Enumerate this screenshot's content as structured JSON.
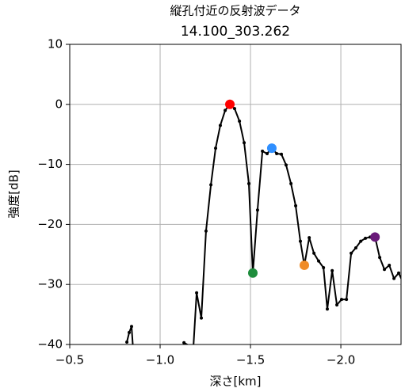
{
  "chart_data": {
    "type": "line",
    "title": "縦孔付近の反射波データ",
    "subtitle": "14.100_303.262",
    "x_label": "深さ[km]",
    "y_label": "強度[dB]",
    "xlim": [
      -0.5,
      -2.333
    ],
    "ylim": [
      -40,
      10
    ],
    "xticks": [
      {
        "value": -0.5,
        "label": "−0.5"
      },
      {
        "value": -1.0,
        "label": "−1.0"
      },
      {
        "value": -1.5,
        "label": "−1.5"
      },
      {
        "value": -2.0,
        "label": "−2.0"
      }
    ],
    "yticks": [
      {
        "value": -40,
        "label": "−40"
      },
      {
        "value": -30,
        "label": "−30"
      },
      {
        "value": -20,
        "label": "−20"
      },
      {
        "value": -10,
        "label": "−10"
      },
      0,
      10
    ],
    "grid": true,
    "color": "#000000",
    "x": [
      -0.816,
      -0.829,
      -0.842,
      -0.851,
      null,
      -1.132,
      -1.167,
      -1.184,
      -1.202,
      -1.228,
      -1.254,
      -1.281,
      -1.307,
      -1.333,
      -1.36,
      -1.386,
      -1.412,
      -1.439,
      -1.465,
      -1.491,
      -1.513,
      -1.539,
      -1.566,
      -1.592,
      -1.618,
      -1.645,
      -1.671,
      -1.697,
      -1.724,
      -1.75,
      -1.776,
      -1.798,
      -1.825,
      -1.851,
      -1.877,
      -1.904,
      -1.925,
      -1.952,
      -1.978,
      -2.004,
      -2.031,
      -2.057,
      -2.083,
      -2.11,
      -2.136,
      -2.162,
      -2.189,
      -2.215,
      -2.241,
      -2.268,
      -2.294,
      -2.32,
      -2.346
    ],
    "values": [
      -39.6,
      -38.0,
      -37.0,
      -41.0,
      null,
      -39.7,
      -40.3,
      -40.5,
      -31.4,
      -35.6,
      -21.1,
      -13.4,
      -7.3,
      -3.5,
      -1.0,
      0.0,
      -0.7,
      -2.8,
      -6.4,
      -13.2,
      -28.1,
      -17.6,
      -7.8,
      -8.2,
      -7.3,
      -8.2,
      -8.3,
      -10.1,
      -13.2,
      -16.9,
      -22.8,
      -26.8,
      -22.2,
      -24.8,
      -26.1,
      -27.2,
      -34.1,
      -27.7,
      -33.4,
      -32.5,
      -32.5,
      -24.8,
      -23.9,
      -22.8,
      -22.3,
      -22.1,
      -22.1,
      -25.5,
      -27.5,
      -26.8,
      -29.0,
      -28.1,
      -29.8
    ],
    "highlights": [
      {
        "x": -1.386,
        "y": 0.0,
        "color": "#ff0000"
      },
      {
        "x": -1.513,
        "y": -28.1,
        "color": "#1e8c3c"
      },
      {
        "x": -1.618,
        "y": -7.3,
        "color": "#2f8fff"
      },
      {
        "x": -1.798,
        "y": -26.8,
        "color": "#f08c28"
      },
      {
        "x": -2.189,
        "y": -22.1,
        "color": "#6a1a7a"
      }
    ]
  }
}
